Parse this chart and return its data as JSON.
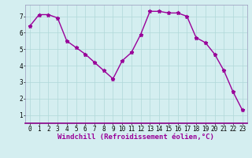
{
  "x": [
    0,
    1,
    2,
    3,
    4,
    5,
    6,
    7,
    8,
    9,
    10,
    11,
    12,
    13,
    14,
    15,
    16,
    17,
    18,
    19,
    20,
    21,
    22,
    23
  ],
  "y": [
    6.4,
    7.1,
    7.1,
    6.9,
    5.5,
    5.1,
    4.7,
    4.2,
    3.7,
    3.2,
    4.3,
    4.8,
    5.9,
    7.3,
    7.3,
    7.2,
    7.2,
    7.0,
    5.7,
    5.4,
    4.7,
    3.7,
    2.4,
    1.3
  ],
  "line_color": "#990099",
  "marker": "*",
  "marker_size": 3.5,
  "xlabel": "Windchill (Refroidissement éolien,°C)",
  "xlabel_fontsize": 6.5,
  "ylabel_ticks": [
    1,
    2,
    3,
    4,
    5,
    6,
    7
  ],
  "xticks": [
    0,
    1,
    2,
    3,
    4,
    5,
    6,
    7,
    8,
    9,
    10,
    11,
    12,
    13,
    14,
    15,
    16,
    17,
    18,
    19,
    20,
    21,
    22,
    23
  ],
  "xlim": [
    -0.5,
    23.5
  ],
  "ylim": [
    0.5,
    7.7
  ],
  "background_color": "#d4eef0",
  "grid_color": "#b0d8d8",
  "tick_fontsize": 5.5,
  "linewidth": 1.0,
  "spine_color": "#9999bb",
  "bottom_spine_color": "#880088"
}
